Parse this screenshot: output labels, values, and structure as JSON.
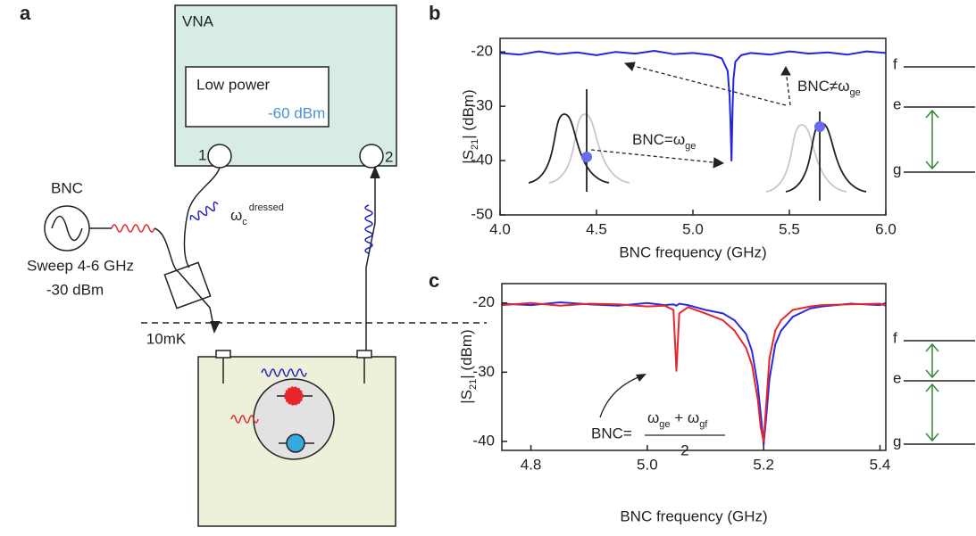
{
  "panels": [
    "a",
    "b",
    "c"
  ],
  "schematic": {
    "vna": "VNA",
    "power_box": "Low power",
    "power_level": "-60 dBm",
    "port_1": "1",
    "port_2": "2",
    "source": "BNC",
    "sweep": "Sweep 4-6 GHz",
    "source_power": "-30 dBm",
    "temperature": "10mK",
    "omega_c": {
      "base": "ω",
      "sub": "c",
      "sup": "dressed"
    }
  },
  "annotations_b": {
    "equal": {
      "text": "BNC=ω",
      "sub": "ge"
    },
    "not_equal": {
      "text": "BNC≠ω",
      "sub": "ge"
    }
  },
  "annotation_c": {
    "prefix": "BNC=",
    "numerator": [
      {
        "text": "ω",
        "sub": "ge"
      },
      {
        "text": " + ω",
        "sub": "gf"
      }
    ],
    "denominator": "2"
  },
  "level_diagrams": [
    {
      "labels": [
        "f",
        "e",
        "g"
      ]
    },
    {
      "labels": [
        "f",
        "e",
        "g"
      ]
    }
  ],
  "chart_data": [
    {
      "type": "line",
      "x_label": "BNC frequency (GHz)",
      "y_label": {
        "text": "|S",
        "sub": "21",
        "tail": "| (dBm)"
      },
      "x": [
        4.0,
        4.1,
        4.2,
        4.3,
        4.4,
        4.5,
        4.6,
        4.7,
        4.8,
        4.9,
        5.0,
        5.1,
        5.15,
        5.18,
        5.19,
        5.195,
        5.2,
        5.205,
        5.21,
        5.22,
        5.25,
        5.3,
        5.4,
        5.5,
        5.6,
        5.7,
        5.8,
        5.9,
        6.0
      ],
      "values": [
        -20.2,
        -20.5,
        -19.9,
        -20.4,
        -20.1,
        -20.6,
        -20.0,
        -20.3,
        -19.8,
        -20.4,
        -20.2,
        -20.6,
        -21.2,
        -23.5,
        -28,
        -33,
        -40,
        -31,
        -25,
        -21.8,
        -20.6,
        -20.2,
        -20.5,
        -19.9,
        -20.3,
        -20.1,
        -20.5,
        -19.9,
        -20.2
      ],
      "color": "#2424e0",
      "xlim": [
        4.0,
        6.0
      ],
      "ylim": [
        -50,
        -17.5
      ],
      "xticks": [
        {
          "value": 4.0,
          "label": "4.0"
        },
        4.5,
        {
          "value": 5.0,
          "label": "5.0"
        },
        5.5,
        {
          "value": 6.0,
          "label": "6.0"
        }
      ],
      "yticks": [
        -20,
        -30,
        -40,
        -50
      ],
      "grid": false
    },
    {
      "type": "line",
      "x_label": "BNC frequency (GHz)",
      "y_label": {
        "text": "|S",
        "sub": "21",
        "tail": "| (dBm)"
      },
      "x": [
        4.75,
        4.8,
        4.85,
        4.9,
        4.95,
        5.0,
        5.03,
        5.045,
        5.05,
        5.055,
        5.07,
        5.1,
        5.13,
        5.15,
        5.17,
        5.18,
        5.19,
        5.195,
        5.2,
        5.205,
        5.21,
        5.22,
        5.23,
        5.25,
        5.28,
        5.3,
        5.35,
        5.4,
        5.41
      ],
      "series": [
        {
          "color": "#2a2ae0",
          "values": [
            -20.1,
            -20.3,
            -19.9,
            -20.2,
            -20.4,
            -20.0,
            -20.3,
            -20.2,
            -20.4,
            -20.1,
            -20.3,
            -21.0,
            -21.5,
            -22.5,
            -24.5,
            -27,
            -32,
            -36,
            -40.5,
            -36,
            -31,
            -26,
            -24,
            -22,
            -20.8,
            -20.5,
            -20.1,
            -20.3,
            -20.0
          ]
        },
        {
          "color": "#e8262a",
          "values": [
            -20.3,
            -20.0,
            -20.4,
            -20.1,
            -20.2,
            -20.5,
            -20.4,
            -21.0,
            -29.8,
            -21.5,
            -20.6,
            -21.5,
            -22.5,
            -24,
            -26.5,
            -29,
            -34,
            -38,
            -40,
            -34,
            -28,
            -24,
            -22.5,
            -21,
            -20.5,
            -20.3,
            -20.2,
            -20.1,
            -20.4
          ]
        }
      ],
      "xlim": [
        4.75,
        5.41
      ],
      "ylim": [
        -41.3,
        -17.2
      ],
      "xticks": [
        4.8,
        {
          "value": 5.0,
          "label": "5.0"
        },
        5.2,
        5.4
      ],
      "yticks": [
        -20,
        -30,
        -40
      ],
      "grid": false
    }
  ]
}
